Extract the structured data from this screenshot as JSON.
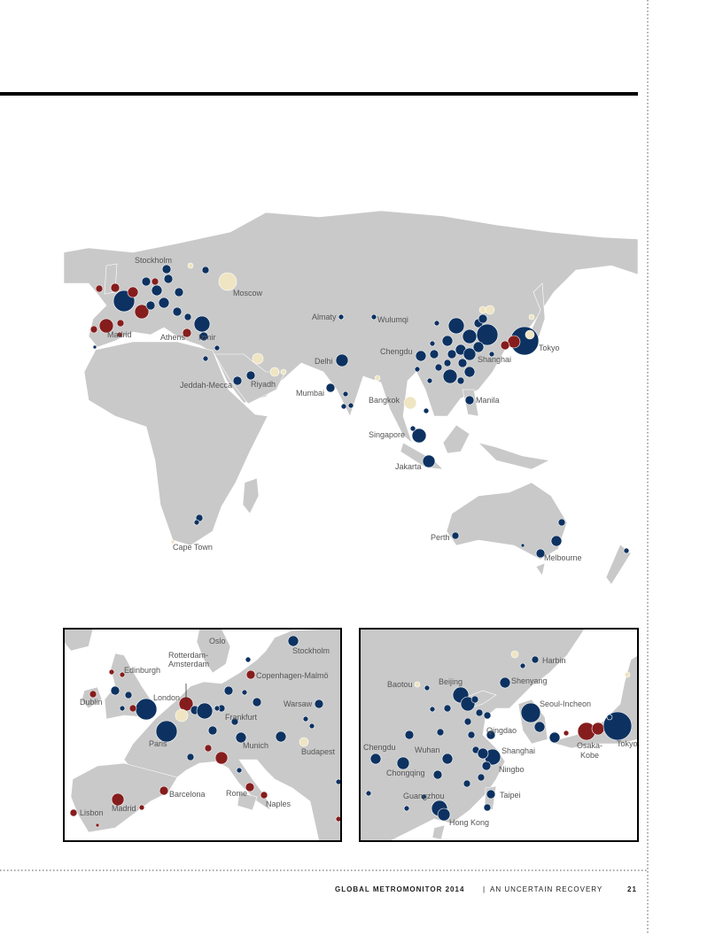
{
  "main_map": {
    "labels": [
      "Stockholm",
      "Moscow",
      "Almaty",
      "Wulumqi",
      "Madrid",
      "Athens",
      "Izmir",
      "Delhi",
      "Chengdu",
      "Shanghai",
      "Tokyo",
      "Jeddah-Mecca",
      "Riyadh",
      "Mumbai",
      "Bangkok",
      "Manila",
      "Singapore",
      "Jakarta",
      "Perth",
      "Melbourne",
      "Cape Town"
    ]
  },
  "europe_inset": {
    "labels": [
      "Oslo",
      "Stockholm",
      "Edinburgh",
      "Rotterdam-",
      "Amsterdam",
      "Copenhagen-Malmö",
      "Dublin",
      "London",
      "Warsaw",
      "Frankfurt",
      "Paris",
      "Munich",
      "Budapest",
      "Barcelona",
      "Rome",
      "Naples",
      "Madrid",
      "Lisbon"
    ]
  },
  "asia_inset": {
    "labels": [
      "Harbin",
      "Baotou",
      "Beijing",
      "Shenyang",
      "Seoul-Incheon",
      "Qingdao",
      "Chengdu",
      "Wuhan",
      "Shanghai",
      "Osaka-",
      "Kobe",
      "Tokyo",
      "Chongqing",
      "Ningbo",
      "Guangzhou",
      "Taipei",
      "Hong Kong"
    ]
  },
  "footer": {
    "title": "GLOBAL METROMONITOR 2014",
    "separator": "|",
    "subtitle": "AN UNCERTAIN RECOVERY",
    "page_number": "21"
  }
}
